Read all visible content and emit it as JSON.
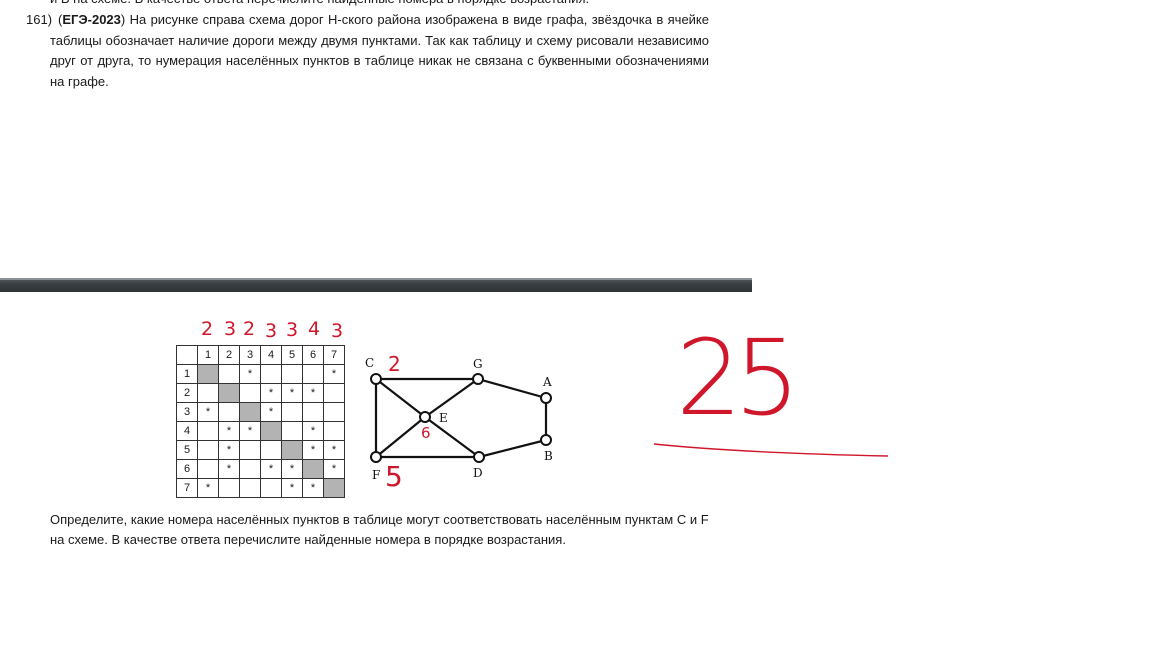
{
  "prev_line": "и В на схеме. В качестве ответа перечислите найденные номера в порядке возрастания.",
  "problem": {
    "number": "161)",
    "open_paren": "(",
    "tag": "ЕГЭ-2023",
    "text": ") На рисунке справа схема дорог Н-ского района изображена в виде графа, звёздочка в ячейке таблицы обозначает наличие дороги между двумя пунктами. Так как таблицу и схему рисовали независимо друг от друга, то нумерация населённых пунктов в таблице никак не связана с буквенными обозначениями на графе."
  },
  "table": {
    "header": [
      "",
      "1",
      "2",
      "3",
      "4",
      "5",
      "6",
      "7"
    ],
    "rows": [
      [
        "1",
        "",
        "",
        "*",
        "",
        "",
        "",
        "*"
      ],
      [
        "2",
        "",
        "",
        "",
        "*",
        "*",
        "*",
        ""
      ],
      [
        "3",
        "*",
        "",
        "",
        "*",
        "",
        "",
        ""
      ],
      [
        "4",
        "",
        "*",
        "*",
        "",
        "",
        "*",
        ""
      ],
      [
        "5",
        "",
        "*",
        "",
        "",
        "",
        "*",
        "*"
      ],
      [
        "6",
        "",
        "*",
        "",
        "*",
        "*",
        "",
        "*"
      ],
      [
        "7",
        "*",
        "",
        "",
        "",
        "*",
        "*",
        ""
      ]
    ]
  },
  "graph": {
    "nodes": [
      "C",
      "G",
      "A",
      "E",
      "B",
      "F",
      "D"
    ],
    "edges": [
      [
        "C",
        "G"
      ],
      [
        "G",
        "A"
      ],
      [
        "A",
        "B"
      ],
      [
        "B",
        "D"
      ],
      [
        "D",
        "F"
      ],
      [
        "F",
        "C"
      ],
      [
        "C",
        "E"
      ],
      [
        "E",
        "D"
      ],
      [
        "G",
        "E"
      ],
      [
        "E",
        "F"
      ]
    ]
  },
  "handwriting": {
    "degrees": [
      "2",
      "3",
      "2",
      "3",
      "3",
      "4",
      "3"
    ],
    "c_label": "2",
    "e_label": "6",
    "f_label": "5",
    "answer": "25",
    "color": "#d0162b"
  },
  "bottom_text": "Определите, какие номера населённых пунктов в таблице могут соответствовать населённым пунктам C и F на схеме. В качестве ответа перечислите найденные номера в порядке возрастания."
}
